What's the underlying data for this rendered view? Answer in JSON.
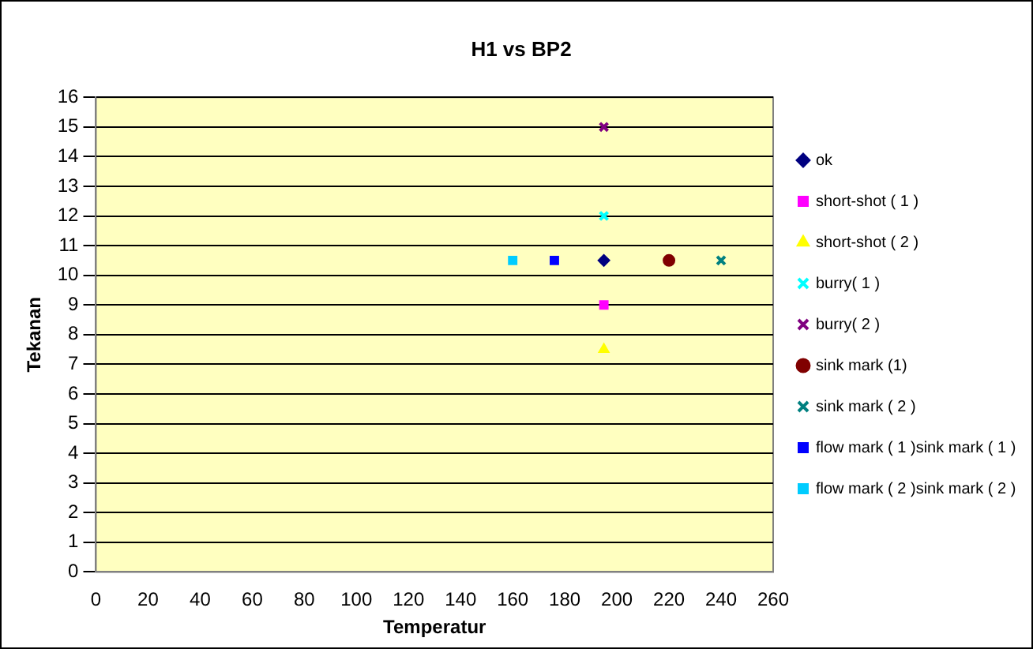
{
  "chart_data": {
    "type": "scatter",
    "title": "H1 vs BP2",
    "xlabel": "Temperatur",
    "ylabel": "Tekanan",
    "xlim": [
      0,
      260
    ],
    "xticks": [
      0,
      20,
      40,
      60,
      80,
      100,
      120,
      140,
      160,
      180,
      200,
      220,
      240,
      260
    ],
    "ylim": [
      0,
      16
    ],
    "yticks": [
      0,
      1,
      2,
      3,
      4,
      5,
      6,
      7,
      8,
      9,
      10,
      11,
      12,
      13,
      14,
      15,
      16
    ],
    "grid": "y",
    "legend": "right",
    "series": [
      {
        "name": "ok",
        "color": "#000080",
        "marker": "diamond",
        "x": [
          195
        ],
        "values": [
          10.5
        ]
      },
      {
        "name": "short-shot ( 1 )",
        "color": "#ff00ff",
        "marker": "square",
        "x": [
          195
        ],
        "values": [
          9
        ]
      },
      {
        "name": "short-shot ( 2 )",
        "color": "#ffff00",
        "marker": "triangle",
        "x": [
          195
        ],
        "values": [
          7.5
        ]
      },
      {
        "name": "burry( 1 )",
        "color": "#00ffff",
        "marker": "cross",
        "x": [
          195
        ],
        "values": [
          12
        ]
      },
      {
        "name": "burry( 2 )",
        "color": "#800080",
        "marker": "cross",
        "x": [
          195
        ],
        "values": [
          15
        ]
      },
      {
        "name": "sink mark (1)",
        "color": "#800000",
        "marker": "circle",
        "x": [
          220
        ],
        "values": [
          10.5
        ]
      },
      {
        "name": "sink mark ( 2 )",
        "color": "#008080",
        "marker": "cross",
        "x": [
          240
        ],
        "values": [
          10.5
        ]
      },
      {
        "name": "flow mark ( 1 )sink mark ( 1 )",
        "color": "#0000ff",
        "marker": "square",
        "x": [
          176
        ],
        "values": [
          10.5
        ]
      },
      {
        "name": "flow mark ( 2 )sink mark ( 2 )",
        "color": "#00ccff",
        "marker": "square",
        "x": [
          160
        ],
        "values": [
          10.5
        ]
      }
    ]
  }
}
